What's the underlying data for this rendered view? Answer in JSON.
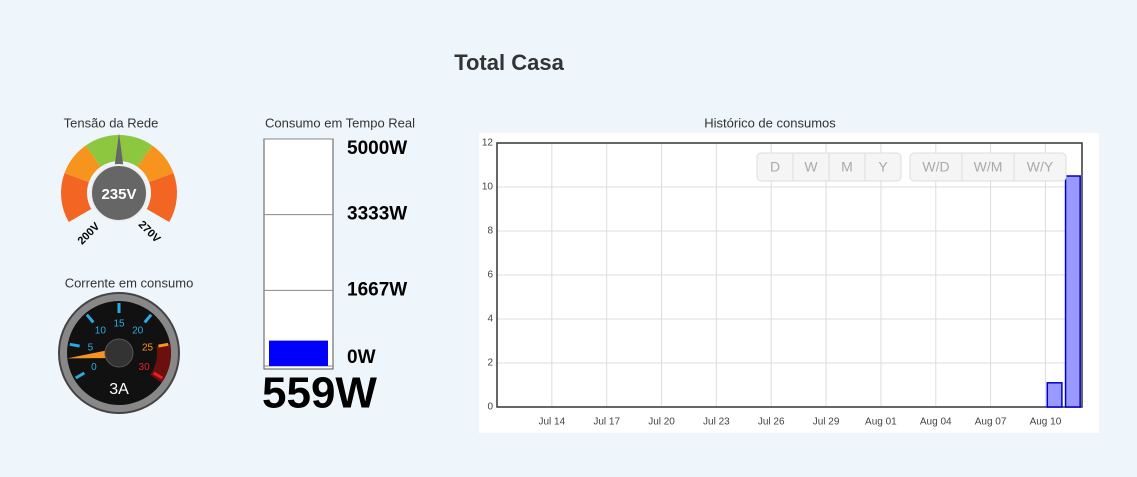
{
  "header": {
    "title": "Total Casa"
  },
  "voltage_gauge": {
    "label": "Tensão da Rede",
    "value": 235,
    "value_label": "235V",
    "min": 200,
    "max": 270,
    "min_label": "200V",
    "max_label": "270V"
  },
  "current_gauge": {
    "label": "Corrente em consumo",
    "value": 3,
    "value_label": "3A",
    "ticks": [
      0,
      5,
      10,
      15,
      20,
      25,
      30
    ],
    "tick_colors": [
      "#29abe2",
      "#29abe2",
      "#29abe2",
      "#29abe2",
      "#29abe2",
      "#f7941d",
      "#ed1c24"
    ]
  },
  "power_meter": {
    "label": "Consumo em Tempo Real",
    "value": 559,
    "value_label": "559W",
    "color": "#0000ff",
    "ylim": [
      0,
      5000
    ],
    "yticks": [
      {
        "value": 0,
        "label": "0W"
      },
      {
        "value": 1667,
        "label": "1667W"
      },
      {
        "value": 3333,
        "label": "3333W"
      },
      {
        "value": 5000,
        "label": "5000W"
      }
    ]
  },
  "buttons": {
    "group1": [
      "D",
      "W",
      "M",
      "Y"
    ],
    "group2": [
      "W/D",
      "W/M",
      "W/Y"
    ]
  },
  "chart_data": {
    "type": "bar",
    "title": "Histórico de consumos",
    "x": [
      "Aug 10",
      "Aug 11"
    ],
    "values": [
      1.1,
      10.5
    ],
    "color": "#9999ff",
    "edge_color": "#0000cc",
    "xlim": [
      "Jul 11",
      "Aug 12"
    ],
    "xticks": [
      "Jul 14",
      "Jul 17",
      "Jul 20",
      "Jul 23",
      "Jul 26",
      "Jul 29",
      "Aug 01",
      "Aug 04",
      "Aug 07",
      "Aug 10"
    ],
    "ylim": [
      0,
      12
    ],
    "yticks": [
      0,
      2,
      4,
      6,
      8,
      10,
      12
    ],
    "grid": true
  }
}
